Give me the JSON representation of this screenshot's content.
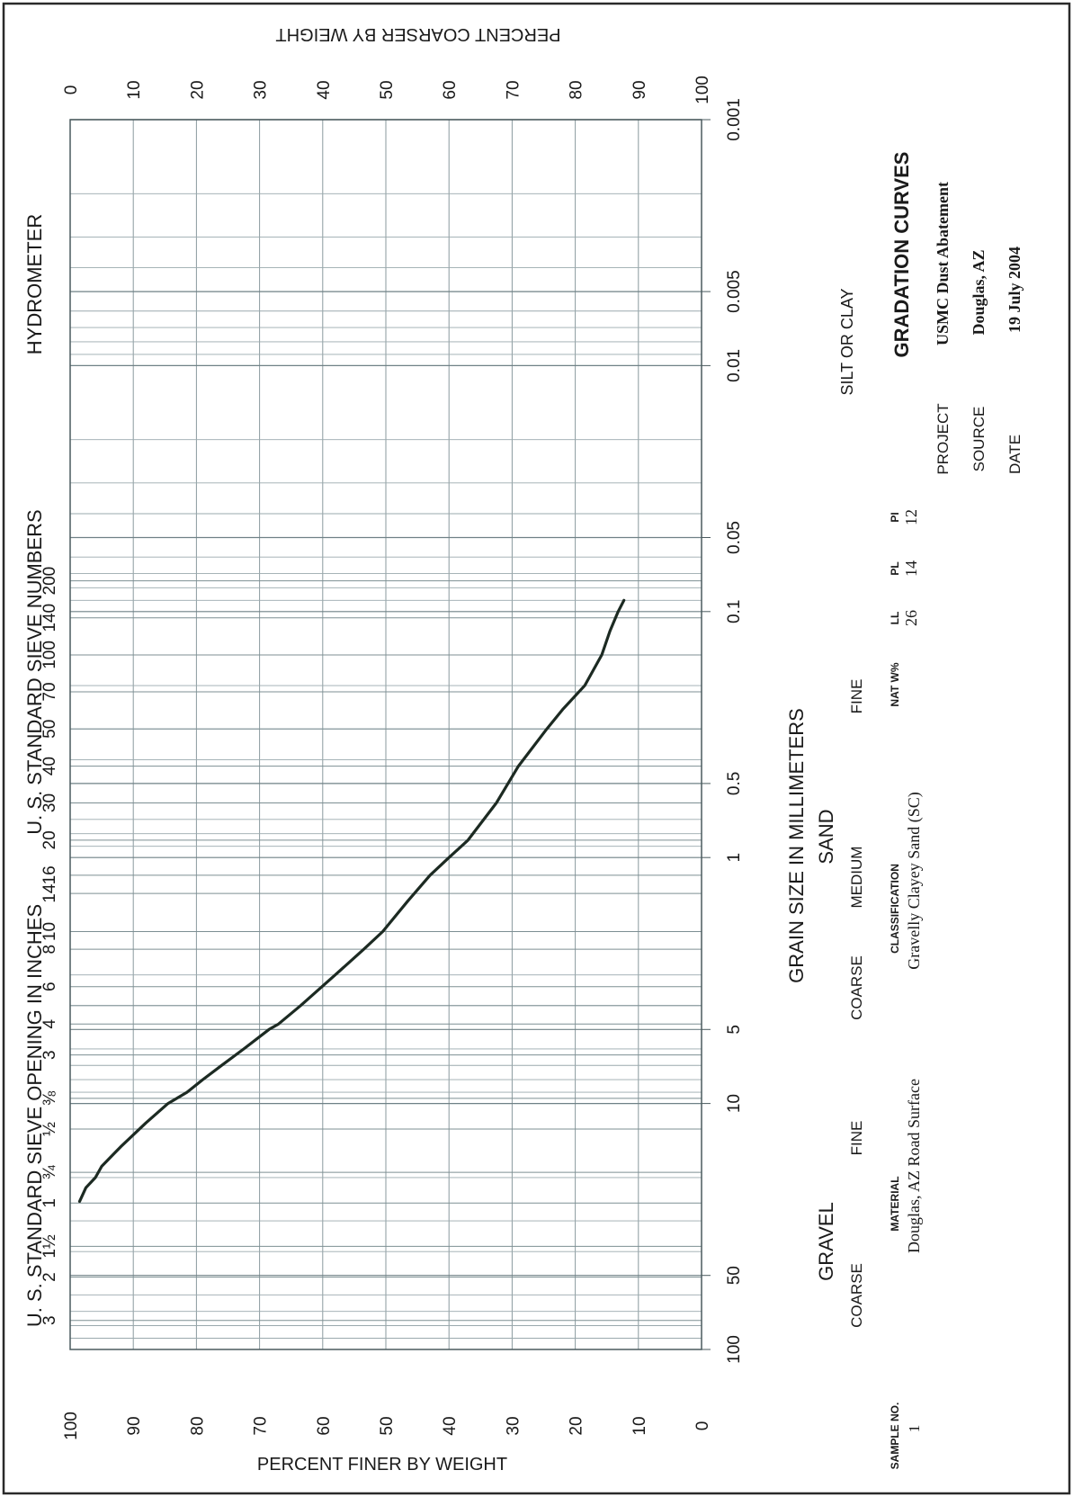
{
  "chart_data": {
    "type": "line",
    "title": "GRADATION CURVES",
    "xlabel": "GRAIN SIZE IN MILLIMETERS",
    "ylabel": "PERCENT FINER BY WEIGHT",
    "ylabel_right": "PERCENT COARSER BY WEIGHT",
    "x_scale": "log",
    "x_reversed": true,
    "xlim": [
      100,
      0.001
    ],
    "ylim": [
      0,
      100
    ],
    "grid": true,
    "x_ticks": [
      "100",
      "50",
      "10",
      "5",
      "1",
      "0.5",
      "0.1",
      "0.05",
      "0.01",
      "0.005",
      "0.001"
    ],
    "y_ticks_finer": [
      "100",
      "90",
      "80",
      "70",
      "60",
      "50",
      "40",
      "30",
      "20",
      "10",
      "0"
    ],
    "y_ticks_coarser": [
      "0",
      "10",
      "20",
      "30",
      "40",
      "50",
      "60",
      "70",
      "80",
      "90",
      "100"
    ],
    "series": [
      {
        "x": [
          25,
          22,
          20,
          18,
          15,
          12,
          10,
          9,
          8,
          7,
          6,
          5,
          4.75,
          4,
          3,
          2.36,
          2,
          1.5,
          1.18,
          1.0,
          0.85,
          0.6,
          0.425,
          0.3,
          0.25,
          0.2,
          0.15,
          0.12,
          0.1,
          0.09
        ],
        "y": [
          98.5,
          97.5,
          96,
          95,
          92,
          88,
          84.5,
          81.5,
          79,
          76,
          72.5,
          68.5,
          67,
          63.5,
          58,
          53.5,
          50.5,
          46.5,
          43,
          40,
          37,
          32.5,
          29,
          24.5,
          22,
          18.5,
          15.8,
          14.5,
          13.2,
          12.3
        ]
      }
    ]
  },
  "header": {
    "hydrometer": "HYDROMETER",
    "sieve_numbers": "U. S. STANDARD SIEVE NUMBERS",
    "sieve_opening": "U. S. STANDARD SIEVE OPENING IN INCHES",
    "sieve_number_labels": [
      "4",
      "6",
      "8",
      "10",
      "14",
      "16",
      "20",
      "30",
      "40",
      "50",
      "70",
      "100",
      "140",
      "200"
    ],
    "inch_labels": [
      "3",
      "2",
      "1½",
      "1",
      "¾",
      "½",
      "⅜",
      "3"
    ]
  },
  "classes": {
    "gravel": "GRAVEL",
    "sand": "SAND",
    "silt_clay": "SILT OR CLAY",
    "coarse_1": "COARSE",
    "fine_1": "FINE",
    "coarse_2": "COARSE",
    "medium": "MEDIUM",
    "fine_2": "FINE"
  },
  "sample_table": {
    "sample_no_label": "SAMPLE NO.",
    "sample_no": "1",
    "material_label": "MATERIAL",
    "material": "Douglas, AZ Road Surface",
    "classification_label": "CLASSIFICATION",
    "classification": "Gravelly Clayey Sand (SC)",
    "nat_w_label": "NAT W%",
    "ll_label": "LL",
    "ll": "26",
    "pl_label": "PL",
    "pl": "14",
    "pi_label": "PI",
    "pi": "12"
  },
  "title_block": {
    "title": "GRADATION CURVES",
    "project_label": "PROJECT",
    "project": "USMC Dust Abatement",
    "source_label": "SOURCE",
    "source": "Douglas, AZ",
    "date_label": "DATE",
    "date": "19 July 2004"
  }
}
